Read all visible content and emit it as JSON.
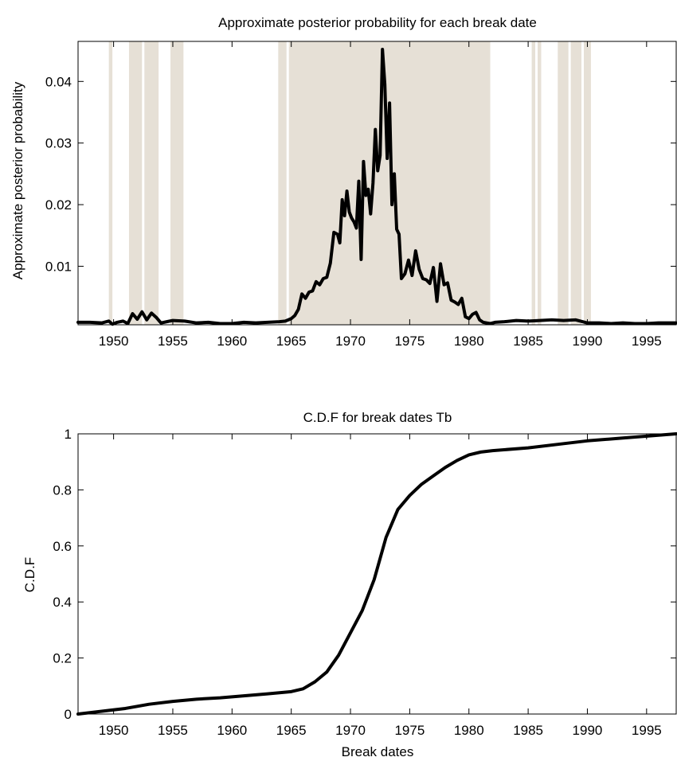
{
  "chart_data": [
    {
      "type": "line",
      "title": "Approximate posterior probability for each break date",
      "xlabel": "",
      "ylabel": "Approximate posterior probability",
      "xlim": [
        1947,
        1997.5
      ],
      "ylim": [
        0.0005,
        0.0465
      ],
      "xticks": [
        1950,
        1955,
        1960,
        1965,
        1970,
        1975,
        1980,
        1985,
        1990,
        1995
      ],
      "yticks": [
        0.01,
        0.02,
        0.03,
        0.04
      ],
      "ytick_labels": [
        "0.01",
        "0.02",
        "0.03",
        "0.04"
      ],
      "grid": false,
      "shaded_color": "#e6e0d6",
      "line_color": "#000000",
      "shaded_regions": [
        [
          1949.6,
          1949.9
        ],
        [
          1951.3,
          1952.4
        ],
        [
          1952.6,
          1953.8
        ],
        [
          1954.8,
          1955.9
        ],
        [
          1963.9,
          1964.6
        ],
        [
          1964.8,
          1981.8
        ],
        [
          1985.3,
          1985.6
        ],
        [
          1985.8,
          1986.1
        ],
        [
          1987.5,
          1988.4
        ],
        [
          1988.6,
          1989.5
        ],
        [
          1989.7,
          1990.3
        ]
      ],
      "series": [
        {
          "x": [
            1947,
            1948,
            1949,
            1949.6,
            1949.9,
            1950.3,
            1950.8,
            1951.2,
            1951.6,
            1952,
            1952.4,
            1952.8,
            1953.2,
            1953.6,
            1954,
            1954.5,
            1955,
            1956,
            1957,
            1958,
            1959,
            1960,
            1961,
            1962,
            1963,
            1964,
            1964.5,
            1965,
            1965.3,
            1965.6,
            1965.9,
            1966.2,
            1966.5,
            1966.8,
            1967.1,
            1967.4,
            1967.7,
            1968,
            1968.3,
            1968.6,
            1968.9,
            1969.1,
            1969.3,
            1969.5,
            1969.7,
            1969.9,
            1970.1,
            1970.3,
            1970.5,
            1970.7,
            1970.9,
            1971.1,
            1971.3,
            1971.5,
            1971.7,
            1971.9,
            1972.1,
            1972.3,
            1972.5,
            1972.7,
            1972.9,
            1973.1,
            1973.3,
            1973.5,
            1973.7,
            1973.9,
            1974.1,
            1974.3,
            1974.6,
            1974.9,
            1975.2,
            1975.5,
            1975.8,
            1976.1,
            1976.4,
            1976.7,
            1977,
            1977.3,
            1977.6,
            1977.9,
            1978.2,
            1978.5,
            1978.8,
            1979.1,
            1979.4,
            1979.7,
            1980,
            1980.3,
            1980.6,
            1980.9,
            1981.2,
            1981.5,
            1981.8,
            1982.2,
            1983,
            1984,
            1985,
            1986,
            1987,
            1988,
            1989,
            1990,
            1991,
            1992,
            1993,
            1994,
            1995,
            1996,
            1997.5
          ],
          "y": [
            0.0009,
            0.0009,
            0.0008,
            0.0011,
            0.0006,
            0.0009,
            0.0011,
            0.0007,
            0.0023,
            0.0014,
            0.0026,
            0.0013,
            0.0024,
            0.0017,
            0.0008,
            0.001,
            0.0012,
            0.0011,
            0.0008,
            0.0009,
            0.0007,
            0.0007,
            0.0009,
            0.0008,
            0.0009,
            0.001,
            0.0011,
            0.0015,
            0.002,
            0.003,
            0.0055,
            0.0048,
            0.0058,
            0.006,
            0.0075,
            0.007,
            0.008,
            0.0082,
            0.0105,
            0.0155,
            0.0152,
            0.0138,
            0.0208,
            0.0182,
            0.0222,
            0.0188,
            0.0178,
            0.0172,
            0.0162,
            0.0238,
            0.0111,
            0.027,
            0.0215,
            0.0225,
            0.0185,
            0.0235,
            0.0322,
            0.0255,
            0.028,
            0.0452,
            0.0395,
            0.0275,
            0.0365,
            0.02,
            0.025,
            0.016,
            0.0152,
            0.008,
            0.0088,
            0.011,
            0.0085,
            0.0125,
            0.0095,
            0.008,
            0.0078,
            0.0072,
            0.0098,
            0.0043,
            0.0104,
            0.007,
            0.0073,
            0.0045,
            0.0042,
            0.0038,
            0.0048,
            0.0018,
            0.0015,
            0.0022,
            0.0025,
            0.0013,
            0.0009,
            0.0008,
            0.0007,
            0.0009,
            0.001,
            0.0012,
            0.0011,
            0.0012,
            0.0013,
            0.0012,
            0.0013,
            0.0008,
            0.0008,
            0.0007,
            0.0008,
            0.0007,
            0.0007,
            0.0008,
            0.0008
          ]
        }
      ]
    },
    {
      "type": "line",
      "title": "C.D.F for break dates Tb",
      "xlabel": "Break dates",
      "ylabel": "C.D.F",
      "xlim": [
        1947,
        1997.5
      ],
      "ylim": [
        0,
        1
      ],
      "xticks": [
        1950,
        1955,
        1960,
        1965,
        1970,
        1975,
        1980,
        1985,
        1990,
        1995
      ],
      "yticks": [
        0,
        0.2,
        0.4,
        0.6,
        0.8,
        1
      ],
      "ytick_labels": [
        "0",
        "0.2",
        "0.4",
        "0.6",
        "0.8",
        "1"
      ],
      "grid": false,
      "line_color": "#000000",
      "series": [
        {
          "x": [
            1947,
            1949,
            1951,
            1953,
            1955,
            1957,
            1959,
            1961,
            1963,
            1965,
            1966,
            1967,
            1968,
            1969,
            1970,
            1971,
            1972,
            1973,
            1974,
            1975,
            1976,
            1977,
            1978,
            1979,
            1980,
            1981,
            1982,
            1985,
            1988,
            1990,
            1993,
            1997.5
          ],
          "y": [
            0,
            0.01,
            0.02,
            0.035,
            0.045,
            0.053,
            0.058,
            0.065,
            0.072,
            0.08,
            0.09,
            0.115,
            0.15,
            0.21,
            0.29,
            0.37,
            0.48,
            0.63,
            0.73,
            0.78,
            0.82,
            0.85,
            0.88,
            0.905,
            0.925,
            0.935,
            0.94,
            0.95,
            0.965,
            0.975,
            0.985,
            1
          ]
        }
      ]
    }
  ]
}
